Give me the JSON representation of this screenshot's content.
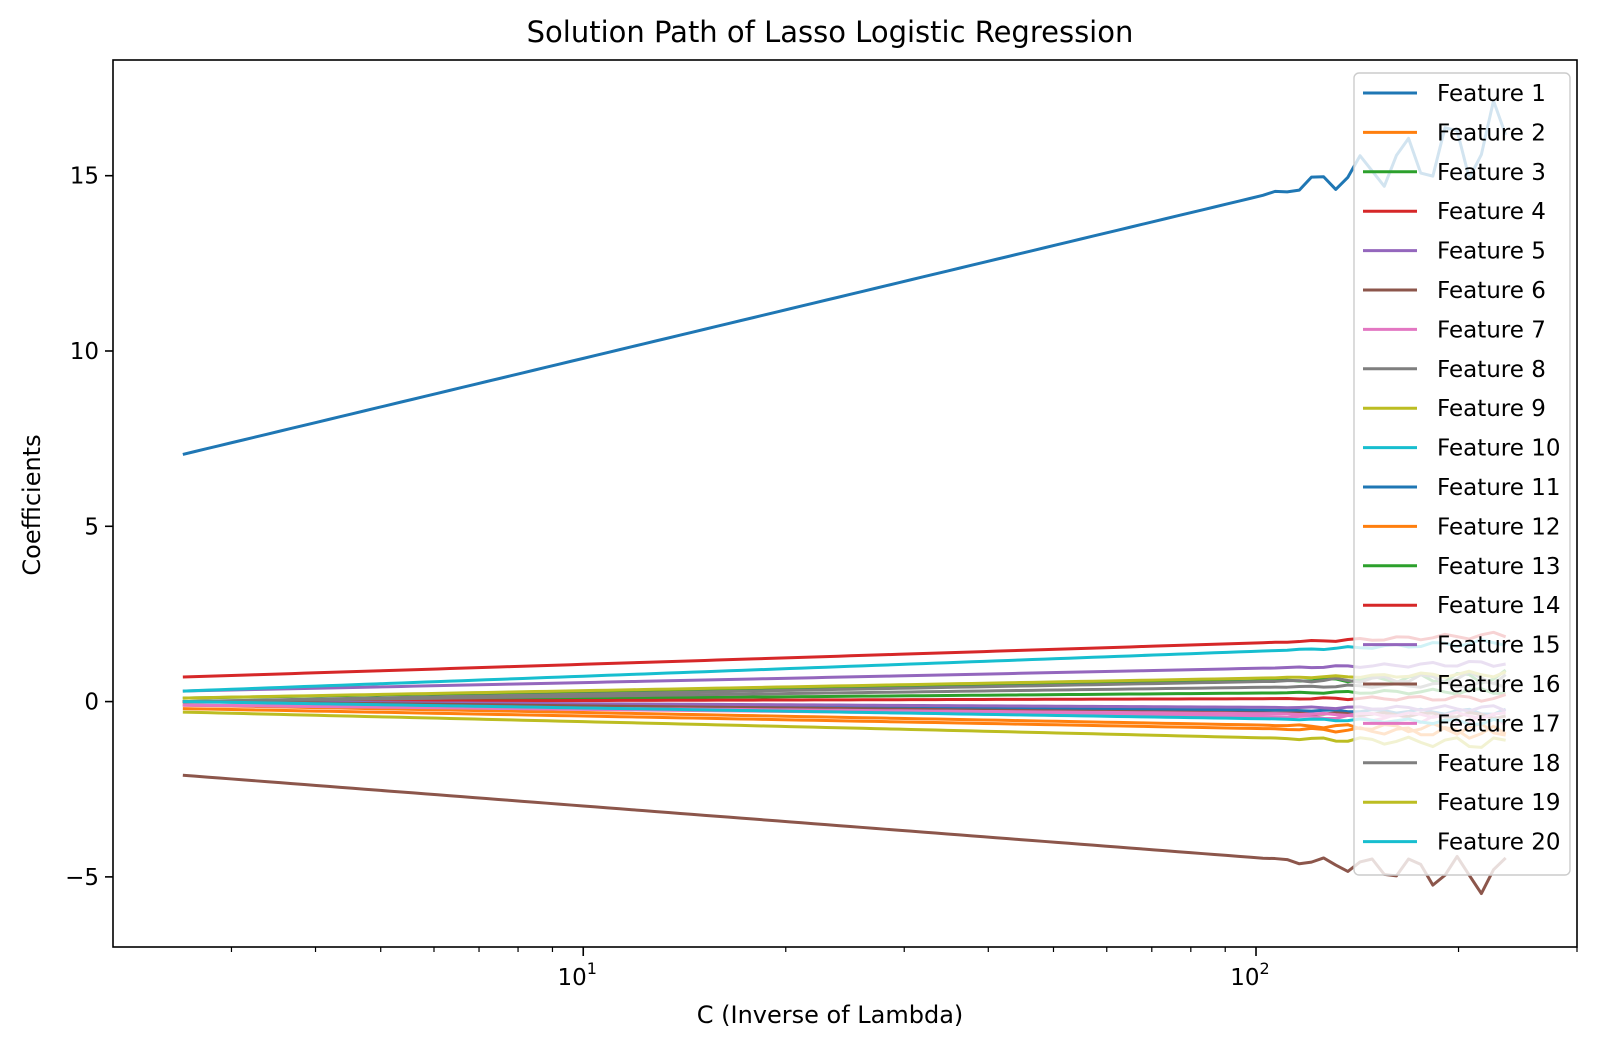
{
  "chart_data": {
    "type": "line",
    "title": "Solution Path of Lasso Logistic Regression",
    "xlabel": "C (Inverse of Lambda)",
    "ylabel": "Coefficients",
    "xscale": "log",
    "xlim": [
      2.0,
      300.0
    ],
    "ylim": [
      -7.0,
      18.3
    ],
    "x_major_ticks": [
      {
        "value": 10,
        "base": "10",
        "exp": "1"
      },
      {
        "value": 100,
        "base": "10",
        "exp": "2"
      }
    ],
    "y_ticks": [
      {
        "value": -5,
        "label": "−5"
      },
      {
        "value": 0,
        "label": "0"
      },
      {
        "value": 5,
        "label": "5"
      },
      {
        "value": 10,
        "label": "10"
      },
      {
        "value": 15,
        "label": "15"
      }
    ],
    "grid": false,
    "legend_position": "top-right",
    "x_range": [
      2.54,
      235.0
    ],
    "series": [
      {
        "name": "Feature 1",
        "color": "#1f77b4",
        "start": 7.05,
        "end": 16.1,
        "noise": 0.6
      },
      {
        "name": "Feature 2",
        "color": "#ff7f0e",
        "start": -0.1,
        "end": -0.8,
        "noise": 0.1
      },
      {
        "name": "Feature 3",
        "color": "#2ca02c",
        "start": 0.1,
        "end": 0.7,
        "noise": 0.1
      },
      {
        "name": "Feature 4",
        "color": "#d62728",
        "start": 0.7,
        "end": 1.9,
        "noise": 0.05
      },
      {
        "name": "Feature 5",
        "color": "#9467bd",
        "start": 0.3,
        "end": 1.1,
        "noise": 0.05
      },
      {
        "name": "Feature 6",
        "color": "#8c564b",
        "start": -2.1,
        "end": -5.0,
        "noise": 0.3
      },
      {
        "name": "Feature 7",
        "color": "#e377c2",
        "start": -0.1,
        "end": -0.5,
        "noise": 0.1
      },
      {
        "name": "Feature 8",
        "color": "#7f7f7f",
        "start": 0.0,
        "end": 0.7,
        "noise": 0.1
      },
      {
        "name": "Feature 9",
        "color": "#bcbd22",
        "start": -0.3,
        "end": -1.2,
        "noise": 0.1
      },
      {
        "name": "Feature 10",
        "color": "#17becf",
        "start": 0.3,
        "end": 1.7,
        "noise": 0.05
      },
      {
        "name": "Feature 11",
        "color": "#1f77b4",
        "start": 0.0,
        "end": -0.3,
        "noise": 0.05
      },
      {
        "name": "Feature 12",
        "color": "#ff7f0e",
        "start": -0.2,
        "end": -0.9,
        "noise": 0.1
      },
      {
        "name": "Feature 13",
        "color": "#2ca02c",
        "start": 0.0,
        "end": 0.3,
        "noise": 0.05
      },
      {
        "name": "Feature 14",
        "color": "#d62728",
        "start": 0.0,
        "end": 0.1,
        "noise": 0.05
      },
      {
        "name": "Feature 15",
        "color": "#9467bd",
        "start": 0.0,
        "end": -0.2,
        "noise": 0.05
      },
      {
        "name": "Feature 16",
        "color": "#8c564b",
        "start": 0.0,
        "end": -0.4,
        "noise": 0.05
      },
      {
        "name": "Feature 17",
        "color": "#e377c2",
        "start": -0.1,
        "end": -0.4,
        "noise": 0.05
      },
      {
        "name": "Feature 18",
        "color": "#7f7f7f",
        "start": 0.0,
        "end": 0.5,
        "noise": 0.05
      },
      {
        "name": "Feature 19",
        "color": "#bcbd22",
        "start": 0.1,
        "end": 0.8,
        "noise": 0.05
      },
      {
        "name": "Feature 20",
        "color": "#17becf",
        "start": 0.0,
        "end": -0.6,
        "noise": 0.05
      }
    ]
  }
}
